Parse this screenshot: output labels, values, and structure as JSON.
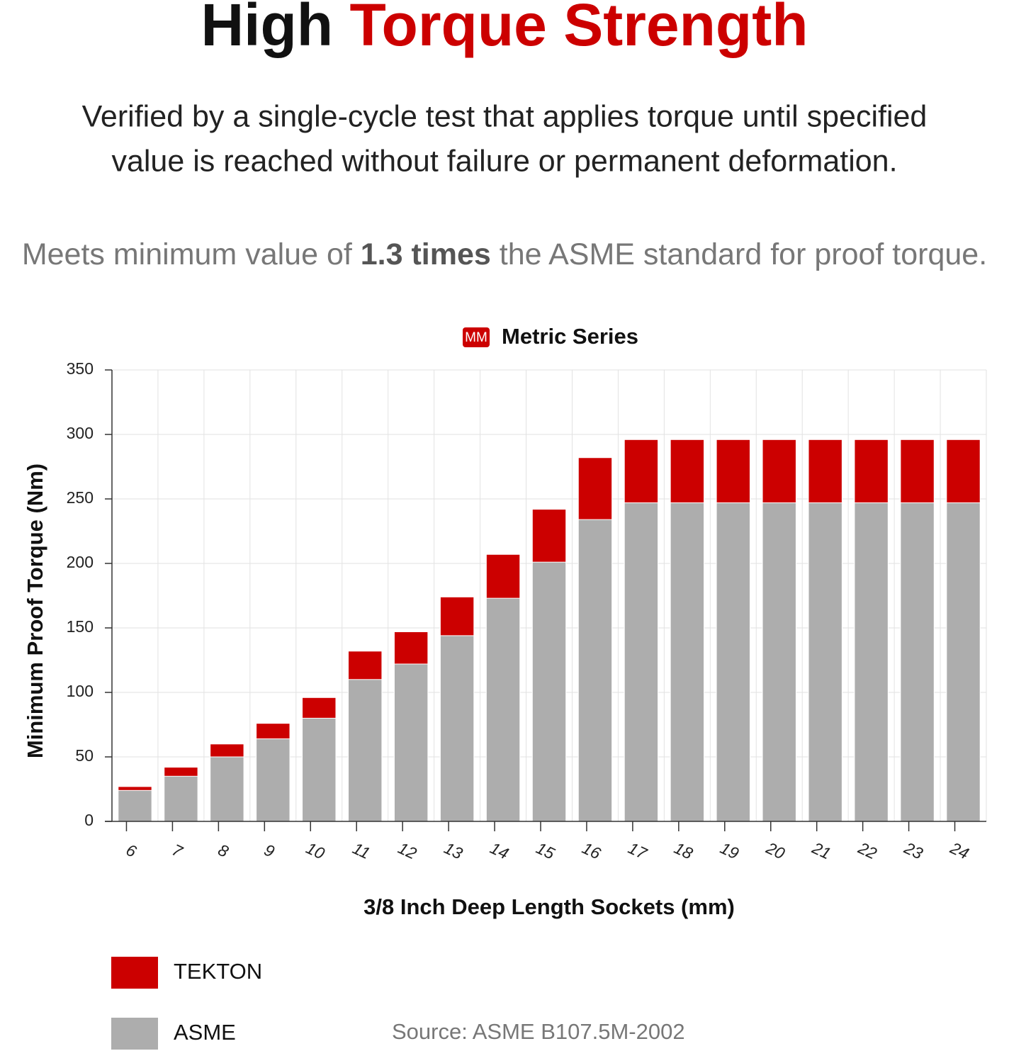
{
  "header": {
    "title": [
      "High ",
      "Torque Strength"
    ],
    "description": [
      "Verified by a single-cycle test that applies torque until specified",
      "value is reached without failure or permanent deformation."
    ],
    "claim": [
      "Meets minimum value of ",
      "1.3 times",
      " the ASME standard for proof torque."
    ]
  },
  "chart_data": {
    "type": "bar",
    "badge": "MM",
    "title": "Metric Series",
    "categories": [
      "6",
      "7",
      "8",
      "9",
      "10",
      "11",
      "12",
      "13",
      "14",
      "15",
      "16",
      "17",
      "18",
      "19",
      "20",
      "21",
      "22",
      "23",
      "24"
    ],
    "series": [
      {
        "name": "TEKTON",
        "color": "#cc0000",
        "values": [
          27,
          42,
          60,
          76,
          96,
          132,
          147,
          174,
          207,
          242,
          282,
          296,
          296,
          296,
          296,
          296,
          296,
          296,
          296
        ]
      },
      {
        "name": "ASME",
        "color": "#adadad",
        "values": [
          24,
          35,
          50,
          64,
          80,
          110,
          122,
          144,
          173,
          201,
          234,
          247,
          247,
          247,
          247,
          247,
          247,
          247,
          247
        ]
      }
    ],
    "ylabel": "Minimum Proof Torque (Nm)",
    "xlabel": "3/8 Inch Deep Length Sockets (mm)",
    "ylim": [
      0,
      350
    ],
    "yticks": [
      0,
      50,
      100,
      150,
      200,
      250,
      300,
      350
    ],
    "grid": true,
    "source": "Source: ASME B107.5M-2002"
  }
}
